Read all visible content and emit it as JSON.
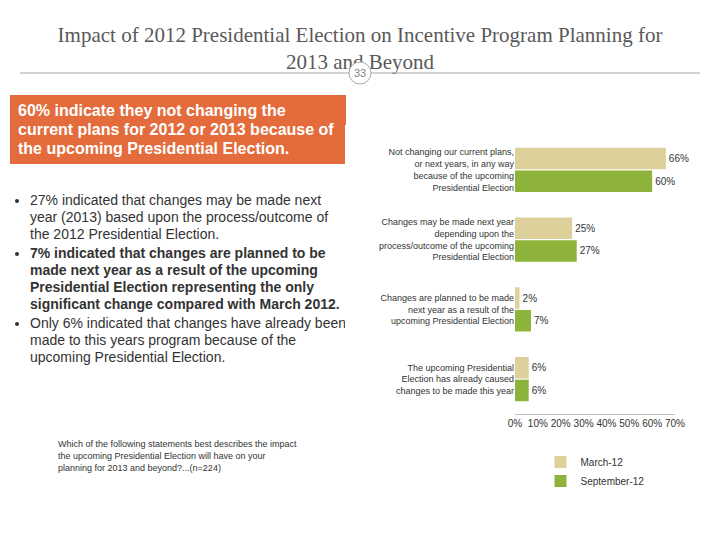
{
  "slide": {
    "title": "Impact of 2012 Presidential Election on Incentive Program Planning for 2013 and Beyond",
    "page_number": "33",
    "headline": "60% indicate they not changing the current plans for 2012 or 2013 because of the upcoming Presidential Election.",
    "bullets": [
      {
        "text": "27% indicated that changes may be made next year (2013) based upon the process/outcome of the 2012 Presidential Election.",
        "bold": false
      },
      {
        "text": "7% indicated that changes are planned to be made next year as a result of the upcoming Presidential Election representing the only significant change compared with March 2012.",
        "bold": true
      },
      {
        "text": "Only 6% indicated that changes have already been made to this years program because of the upcoming Presidential Election.",
        "bold": false
      }
    ],
    "question": "Which of the following statements best describes the impact the upcoming Presidential Election will have on your planning for 2013 and beyond?...(n=224)"
  },
  "chart_data": {
    "type": "bar",
    "orientation": "horizontal",
    "categories": [
      "Not changing our current plans, or next years, in any way because of the upcoming Presidential Election",
      "Changes may be made next year depending upon the process/outcome of the upcoming Presidential Election",
      "Changes are planned to be made next year as a result of the upcoming Presidential Election",
      "The upcoming Presidential Election has already caused changes to be made this year"
    ],
    "series": [
      {
        "name": "March-12",
        "color": "#ddd09a",
        "values": [
          66,
          25,
          2,
          6
        ],
        "value_labels": [
          "66%",
          "25%",
          "2%",
          "6%"
        ]
      },
      {
        "name": "September-12",
        "color": "#8db33a",
        "values": [
          60,
          27,
          7,
          6
        ],
        "value_labels": [
          "60%",
          "27%",
          "7%",
          "6%"
        ]
      }
    ],
    "xlim": [
      0,
      70
    ],
    "xticks": [
      {
        "value": 0,
        "label": "0%"
      },
      {
        "value": 10,
        "label": "10%"
      },
      {
        "value": 20,
        "label": "20%"
      },
      {
        "value": 30,
        "label": "30%"
      },
      {
        "value": 40,
        "label": "40%"
      },
      {
        "value": 50,
        "label": "50%"
      },
      {
        "value": 60,
        "label": "60%"
      },
      {
        "value": 70,
        "label": "70%"
      }
    ],
    "grid": false,
    "legend": "bottom",
    "data_labels": true
  }
}
